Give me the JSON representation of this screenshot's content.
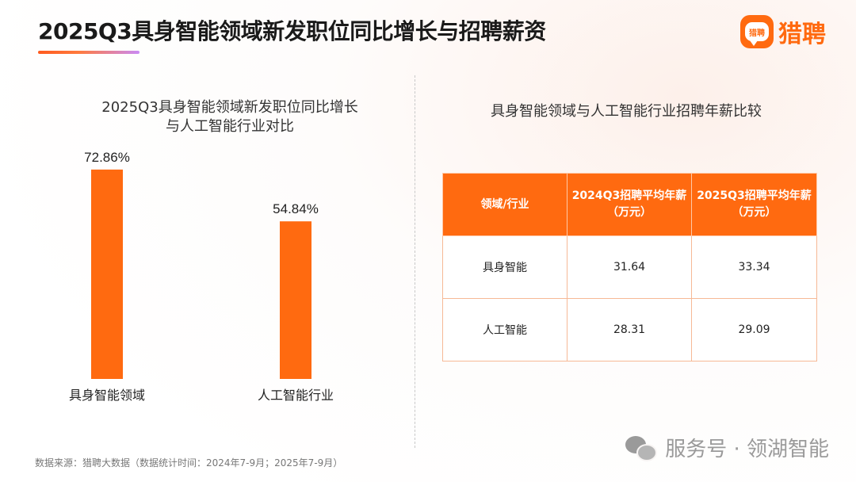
{
  "header": {
    "title": "2025Q3具身智能领域新发职位同比增长与招聘薪资",
    "brand_name": "猎聘",
    "brand_logo_text": "猎聘"
  },
  "left_panel": {
    "title_line1": "2025Q3具身智能领域新发职位同比增长",
    "title_line2": "与人工智能行业对比"
  },
  "right_panel": {
    "title": "具身智能领域与人工智能行业招聘年薪比较",
    "table": {
      "headers": [
        "领域/行业",
        "2024Q3招聘平均年薪（万元）",
        "2025Q3招聘平均年薪（万元）"
      ],
      "rows": [
        [
          "具身智能",
          "31.64",
          "33.34"
        ],
        [
          "人工智能",
          "28.31",
          "29.09"
        ]
      ]
    }
  },
  "footer": {
    "source": "数据来源：猎聘大数据（数据统计时间：2024年7-9月；2025年7-9月）",
    "watermark": "服务号 · 领湖智能"
  },
  "colors": {
    "accent": "#ff6a10",
    "bar": "#ff6a10"
  },
  "icons": {
    "brand": "liepin-logo-icon",
    "watermark": "wechat-icon"
  },
  "chart_data": [
    {
      "type": "bar",
      "title": "2025Q3具身智能领域新发职位同比增长与人工智能行业对比",
      "categories": [
        "具身智能领域",
        "人工智能行业"
      ],
      "values": [
        72.86,
        54.84
      ],
      "data_labels": [
        "72.86%",
        "54.84%"
      ],
      "unit": "%",
      "ylim": [
        0,
        80
      ],
      "grid": false,
      "legend": "none"
    },
    {
      "type": "table",
      "title": "具身智能领域与人工智能行业招聘年薪比较",
      "columns": [
        "领域/行业",
        "2024Q3招聘平均年薪（万元）",
        "2025Q3招聘平均年薪（万元）"
      ],
      "rows": [
        [
          "具身智能",
          31.64,
          33.34
        ],
        [
          "人工智能",
          28.31,
          29.09
        ]
      ]
    }
  ]
}
